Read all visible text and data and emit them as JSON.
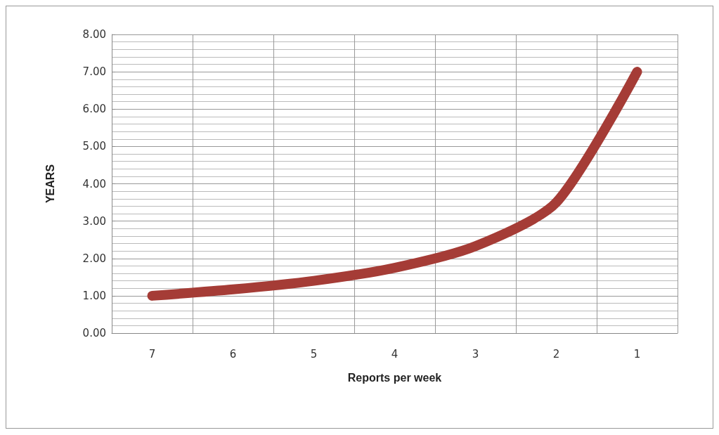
{
  "chart_data": {
    "type": "line",
    "xlabel": "Reports per week",
    "ylabel": "YEARS",
    "categories": [
      "7",
      "6",
      "5",
      "4",
      "3",
      "2",
      "1"
    ],
    "series": [
      {
        "color": "#a53c36",
        "values": [
          1,
          1.17,
          1.4,
          1.75,
          2.33,
          3.5,
          7
        ]
      }
    ],
    "ylim": [
      0,
      8
    ],
    "yticks": [
      {
        "value": 0,
        "label": "0.00"
      },
      {
        "value": 1,
        "label": "1.00"
      },
      {
        "value": 2,
        "label": "2.00"
      },
      {
        "value": 3,
        "label": "3.00"
      },
      {
        "value": 4,
        "label": "4.00"
      },
      {
        "value": 5,
        "label": "5.00"
      },
      {
        "value": 6,
        "label": "6.00"
      },
      {
        "value": 7,
        "label": "7.00"
      },
      {
        "value": 8,
        "label": "8.00"
      }
    ],
    "grid": true,
    "line_style": "solid"
  }
}
